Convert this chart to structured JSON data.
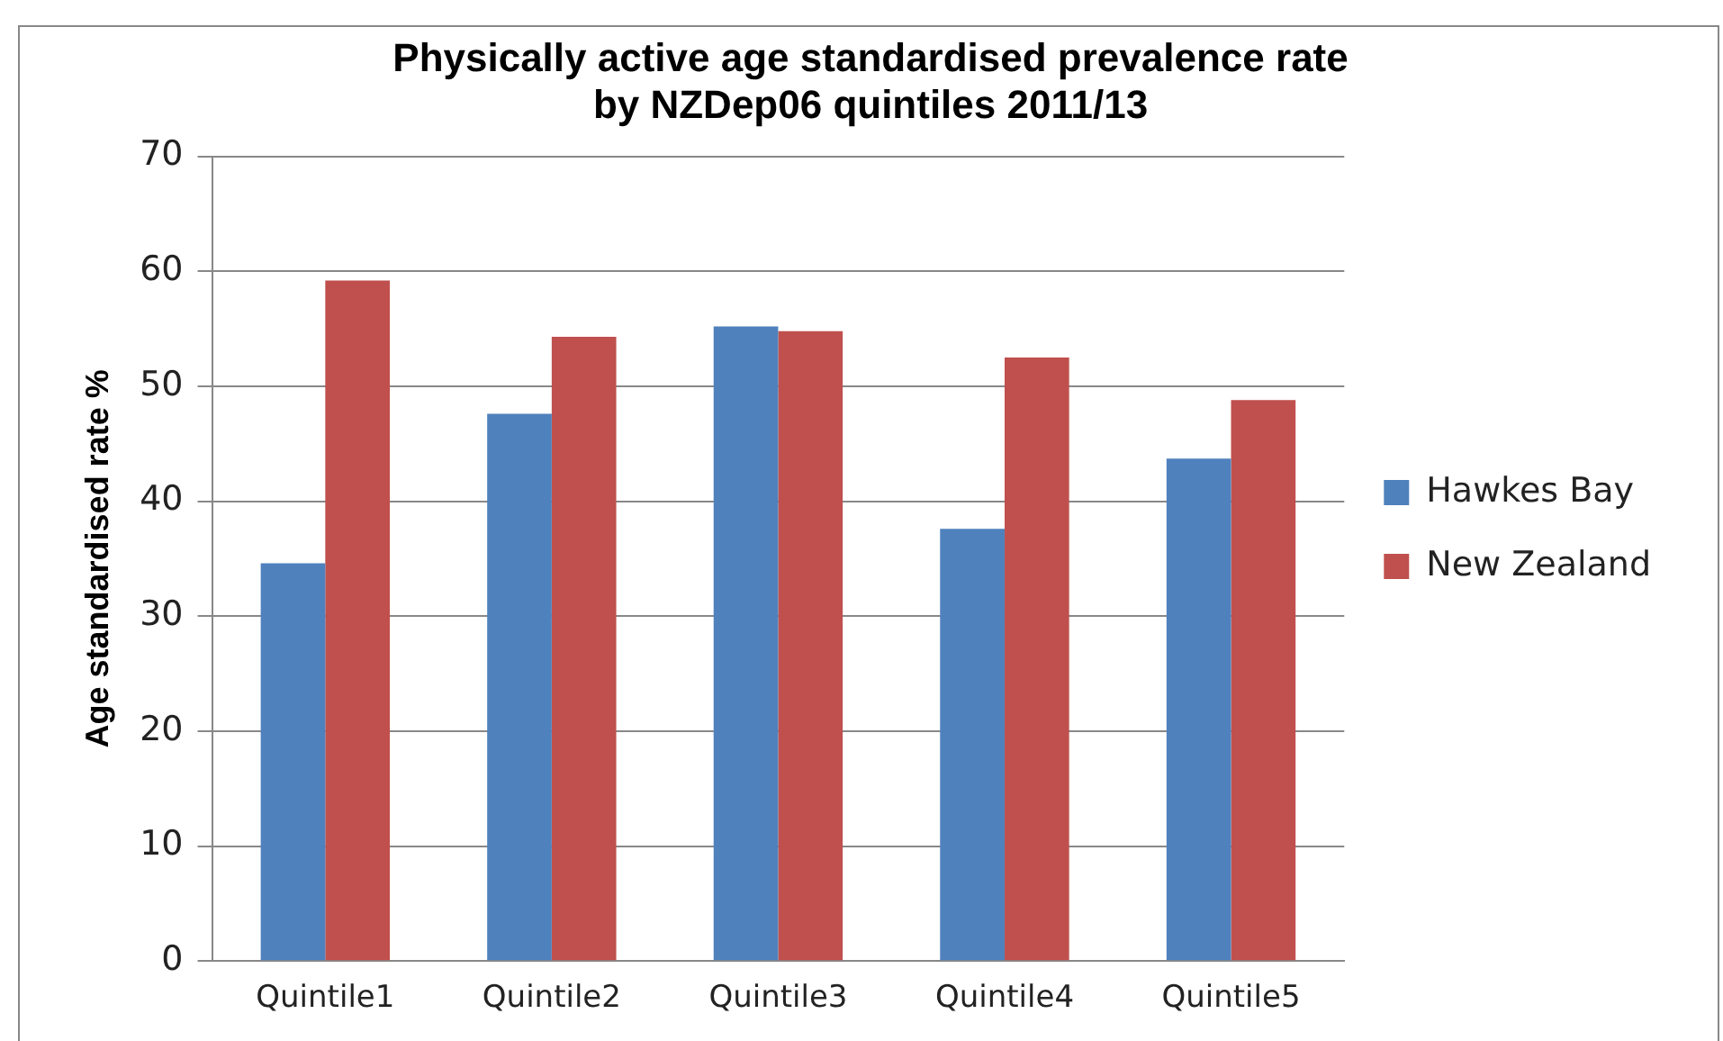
{
  "chart_data": {
    "type": "bar",
    "title": "Physically active age standardised prevalence rate\nby NZDep06 quintiles 2011/13",
    "ylabel": "Age standardised rate %",
    "categories": [
      "Quintile1",
      "Quintile2",
      "Quintile3",
      "Quintile4",
      "Quintile5"
    ],
    "series": [
      {
        "name": "Hawkes Bay",
        "color": "#4f81bd",
        "values": [
          34.6,
          47.6,
          55.2,
          37.6,
          43.7
        ]
      },
      {
        "name": "New Zealand",
        "color": "#c0504d",
        "values": [
          59.2,
          54.3,
          54.8,
          52.5,
          48.8
        ]
      }
    ],
    "ylim": [
      0,
      70
    ],
    "yticks": [
      0,
      10,
      20,
      30,
      40,
      50,
      60,
      70
    ],
    "grid": "y",
    "legend": "right"
  }
}
